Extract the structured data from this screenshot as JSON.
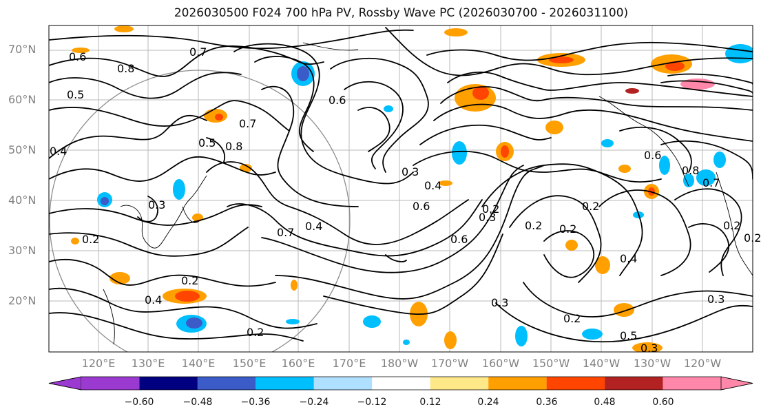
{
  "title": "2026030500 F024 700 hPa PV, Rossby Wave PC (2026030700 - 2026031100)",
  "lat_labels": [
    "70°N",
    "60°N",
    "50°N",
    "40°N",
    "30°N",
    "20°N"
  ],
  "lon_labels": [
    "120°E",
    "130°E",
    "140°E",
    "150°E",
    "160°E",
    "170°E",
    "180°W",
    "170°W",
    "160°W",
    "150°W",
    "140°W",
    "130°W",
    "120°W"
  ],
  "colorbar": {
    "ticks": [
      "−0.60",
      "−0.48",
      "−0.36",
      "−0.24",
      "−0.12",
      "0.12",
      "0.24",
      "0.36",
      "0.48",
      "0.60"
    ],
    "colors": [
      "#9a3ad0",
      "#000080",
      "#3a5bc8",
      "#00bfff",
      "#b0e0ff",
      "#ffffff",
      "#ffe888",
      "#ffa000",
      "#ff4500",
      "#b22222",
      "#ff88aa"
    ]
  },
  "contour_labels": [
    "0.6",
    "0.8",
    "0.7",
    "0.5",
    "0.4",
    "0.3",
    "0.2",
    "0.6",
    "0.8",
    "0.7",
    "0.5",
    "0.3",
    "0.4",
    "0.6",
    "0.7",
    "0.4",
    "0.6",
    "0.3",
    "0.2",
    "0.2",
    "0.2",
    "0.4",
    "0.3",
    "0.2",
    "0.4",
    "0.2",
    "0.3",
    "0.2",
    "0.5",
    "0.3",
    "0.6",
    "0.8",
    "0.7",
    "0.2",
    "0.2",
    "0.2"
  ],
  "map_features": [
    "pv-contour",
    "coastline",
    "rossby-wave-pc-fill",
    "gridline",
    "great-circle"
  ]
}
